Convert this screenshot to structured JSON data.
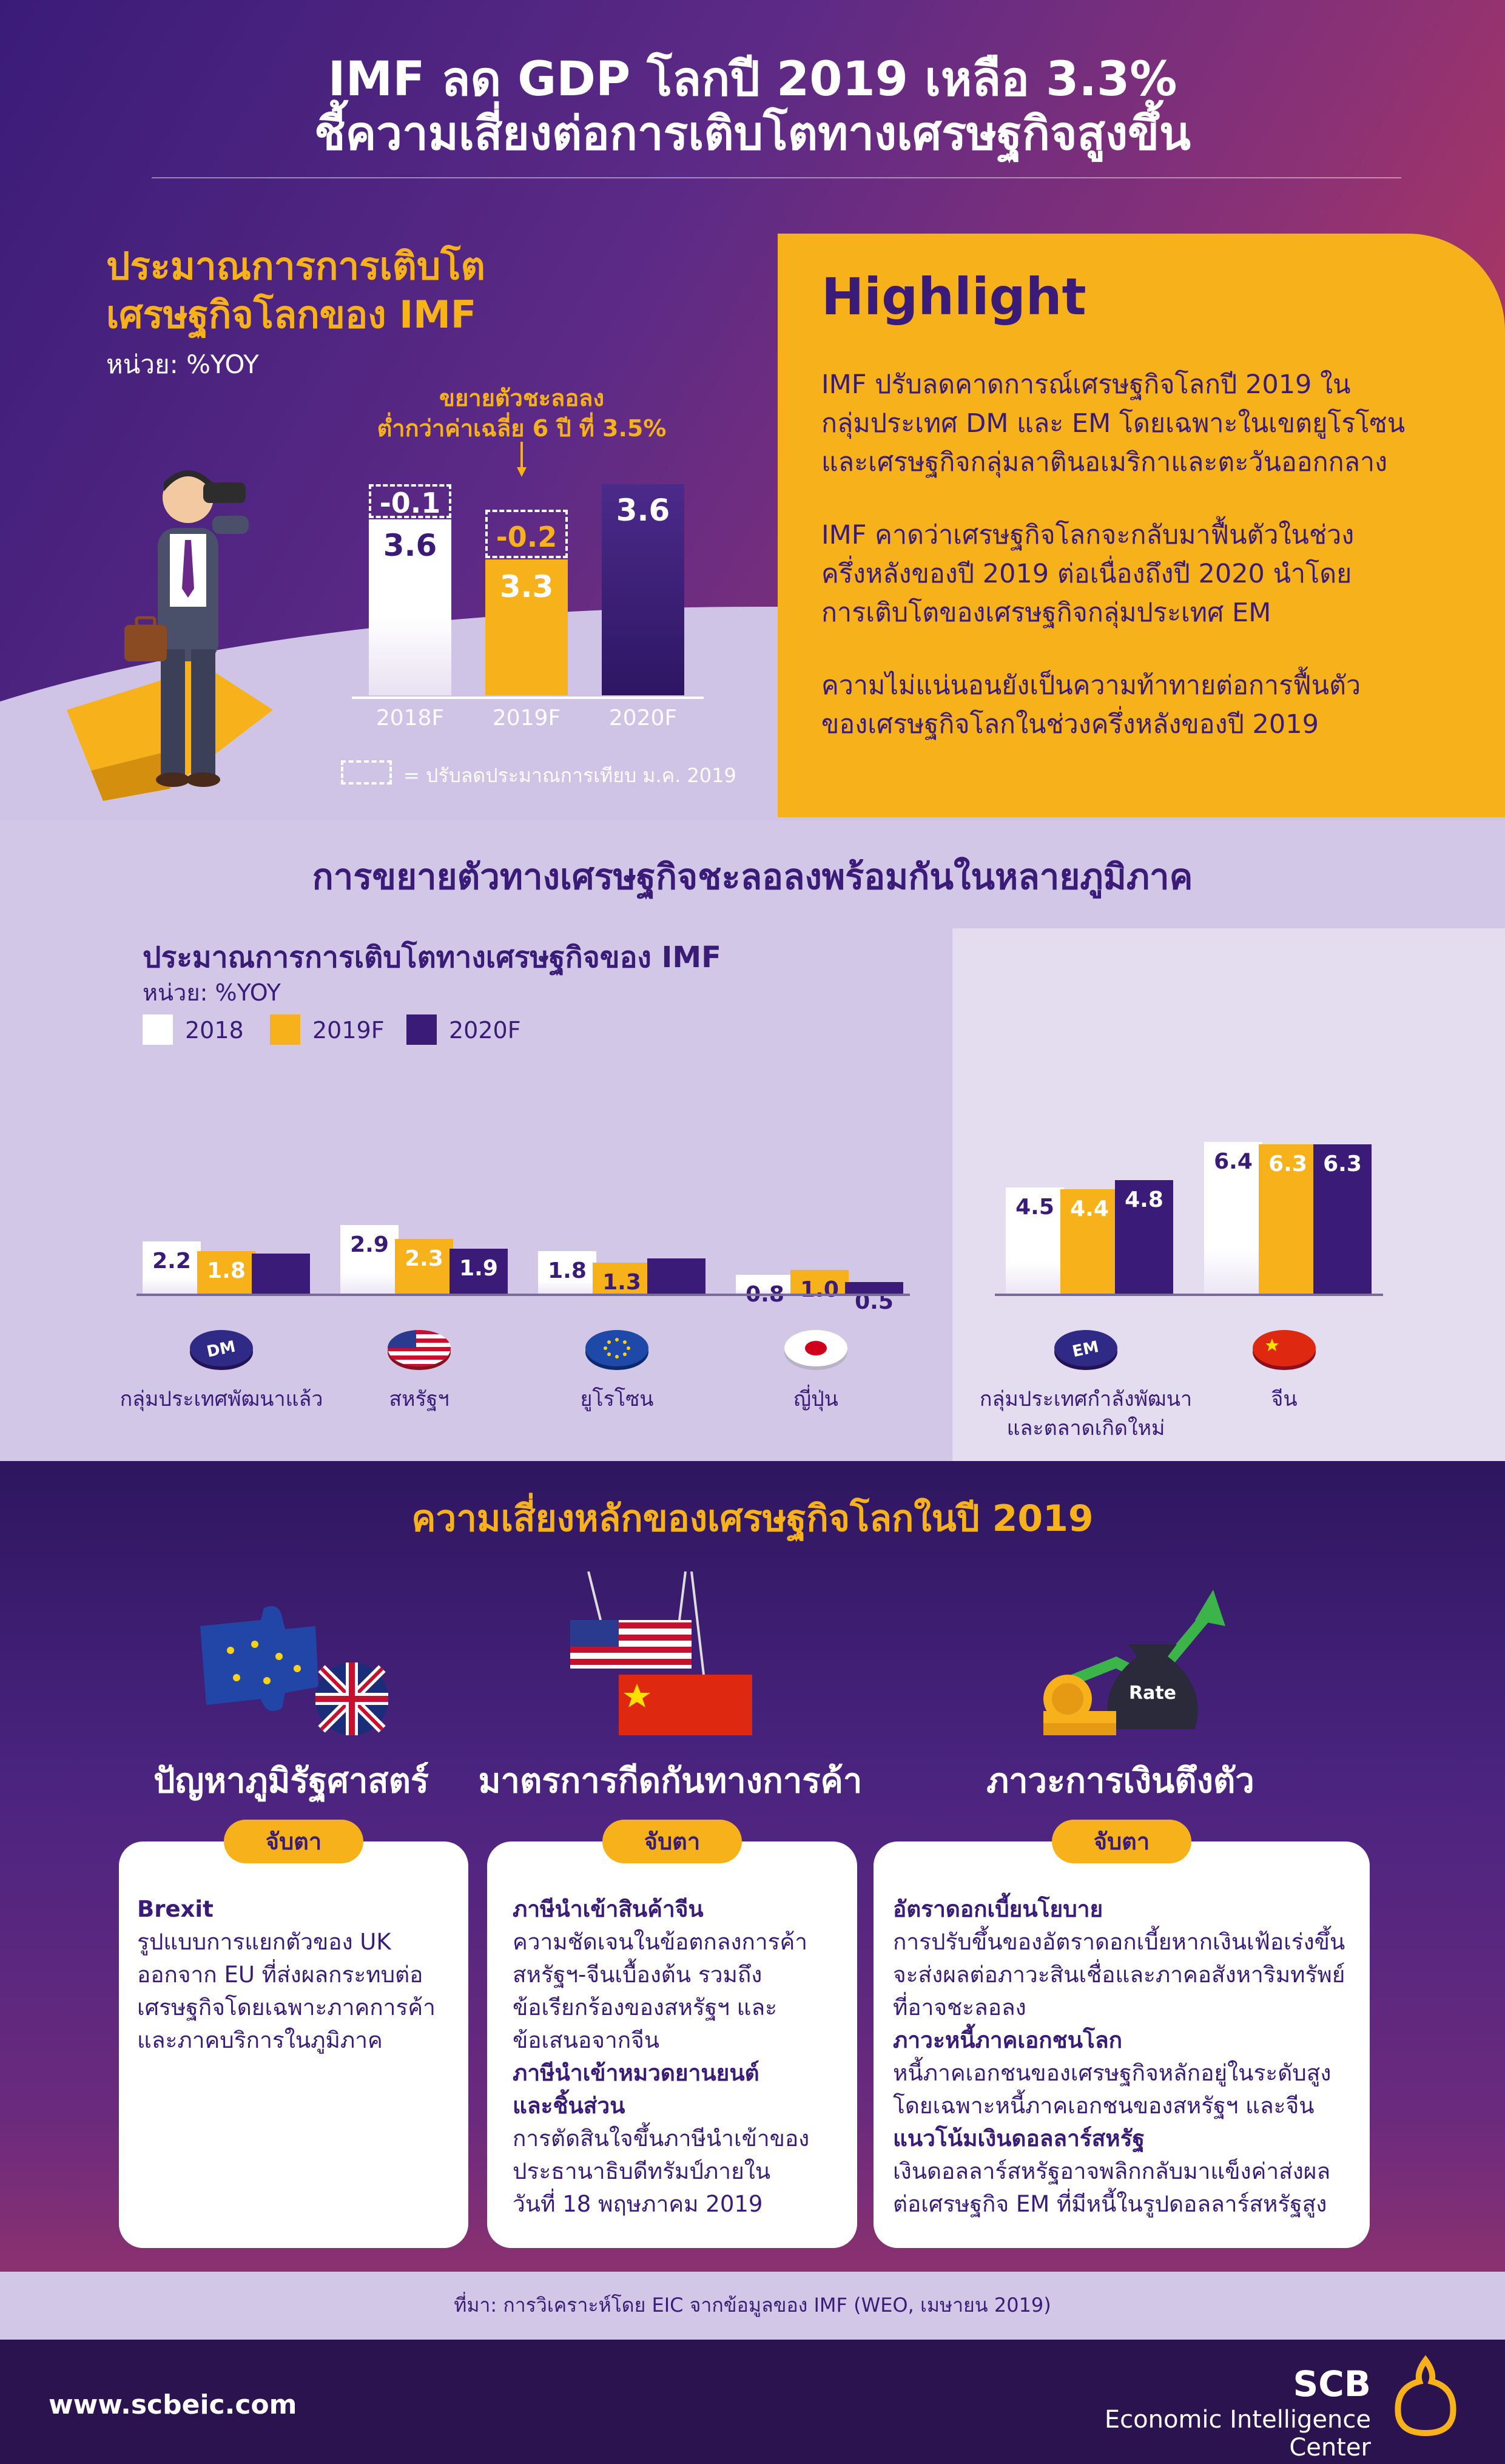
{
  "header": {
    "title_line1": "IMF ลด GDP โลกปี 2019 เหลือ 3.3%",
    "title_line2": "ชี้ความเสี่ยงต่อการเติบโตทางเศรษฐกิจสูงขึ้น"
  },
  "growth": {
    "title_line1": "ประมาณการการเติบโต",
    "title_line2": "เศรษฐกิจโลกของ IMF",
    "unit": "หน่วย: %YOY",
    "note_line1": "ขยายตัวชะลอลง",
    "note_line2": "ต่ำกว่าค่าเฉลี่ย 6 ปี ที่ 3.5%",
    "bars": [
      {
        "year": "2018F",
        "value": "3.6",
        "revision": "-0.1"
      },
      {
        "year": "2019F",
        "value": "3.3",
        "revision": "-0.2"
      },
      {
        "year": "2020F",
        "value": "3.6",
        "revision": ""
      }
    ],
    "legend": "= ปรับลดประมาณการเทียบ ม.ค. 2019"
  },
  "highlight": {
    "title": "Highlight",
    "p1_l1": "IMF ปรับลดคาดการณ์เศรษฐกิจโลกปี 2019 ใน",
    "p1_l2": "กลุ่มประเทศ DM และ EM โดยเฉพาะในเขตยูโรโซน",
    "p1_l3": "และเศรษฐกิจกลุ่มลาตินอเมริกาและตะวันออกกลาง",
    "p2_l1": "IMF คาดว่าเศรษฐกิจโลกจะกลับมาฟื้นตัวในช่วง",
    "p2_l2": "ครึ่งหลังของปี 2019 ต่อเนื่องถึงปี 2020 นำโดย",
    "p2_l3": "การเติบโตของเศรษฐกิจกลุ่มประเทศ EM",
    "p3_l1": "ความไม่แน่นอนยังเป็นความท้าทายต่อการฟื้นตัว",
    "p3_l2": "ของเศรษฐกิจโลกในช่วงครึ่งหลังของปี 2019"
  },
  "regional": {
    "title": "การขยายตัวทางเศรษฐกิจชะลอลงพร้อมกันในหลายภูมิภาค",
    "subtitle": "ประมาณการการเติบโตทางเศรษฐกิจของ IMF",
    "unit": "หน่วย: %YOY",
    "legend": [
      "2018",
      "2019F",
      "2020F"
    ],
    "groups": [
      {
        "label": "กลุ่มประเทศพัฒนาแล้ว",
        "icon": "DM",
        "v": [
          "2.2",
          "1.8",
          "1.7"
        ]
      },
      {
        "label": "สหรัฐฯ",
        "icon": "us-flag-icon",
        "v": [
          "2.9",
          "2.3",
          "1.9"
        ]
      },
      {
        "label": "ยูโรโซน",
        "icon": "eu-flag-icon",
        "v": [
          "1.8",
          "1.3",
          "1.5"
        ]
      },
      {
        "label": "ญี่ปุ่น",
        "icon": "japan-flag-icon",
        "v": [
          "0.8",
          "1.0",
          "0.5"
        ]
      },
      {
        "label_l1": "กลุ่มประเทศกำลังพัฒนา",
        "label_l2": "และตลาดเกิดใหม่",
        "icon": "EM",
        "v": [
          "4.5",
          "4.4",
          "4.8"
        ]
      },
      {
        "label": "จีน",
        "icon": "china-flag-icon",
        "v": [
          "6.4",
          "6.3",
          "6.3"
        ]
      }
    ]
  },
  "chart_data": {
    "type": "bar",
    "categories": [
      "กลุ่มประเทศพัฒนาแล้ว",
      "สหรัฐฯ",
      "ยูโรโซน",
      "ญี่ปุ่น",
      "กลุ่มประเทศกำลังพัฒนาและตลาดเกิดใหม่",
      "จีน"
    ],
    "series": [
      {
        "name": "2018",
        "values": [
          2.2,
          2.9,
          1.8,
          0.8,
          4.5,
          6.4
        ]
      },
      {
        "name": "2019F",
        "values": [
          1.8,
          2.3,
          1.3,
          1.0,
          4.4,
          6.3
        ]
      },
      {
        "name": "2020F",
        "values": [
          1.7,
          1.9,
          1.5,
          0.5,
          4.8,
          6.3
        ]
      }
    ],
    "title": "ประมาณการการเติบโตทางเศรษฐกิจของ IMF",
    "ylabel": "หน่วย: %YOY",
    "ylim": [
      0,
      7
    ]
  },
  "risks": {
    "title": "ความเสี่ยงหลักของเศรษฐกิจโลกในปี 2019",
    "watch_label": "จับตา",
    "items": [
      {
        "title": "ปัญหาภูมิรัฐศาสตร์",
        "lines": [
          {
            "t": "Brexit",
            "b": true
          },
          {
            "t": "รูปแบบการแยกตัวของ UK"
          },
          {
            "t": "ออกจาก EU ที่ส่งผลกระทบต่อ"
          },
          {
            "t": "เศรษฐกิจโดยเฉพาะภาคการค้า"
          },
          {
            "t": "และภาคบริการในภูมิภาค"
          }
        ]
      },
      {
        "title": "มาตรการกีดกันทางการค้า",
        "lines": [
          {
            "t": "ภาษีนำเข้าสินค้าจีน",
            "b": true
          },
          {
            "t": "ความชัดเจนในข้อตกลงการค้า"
          },
          {
            "t": "สหรัฐฯ-จีนเบื้องต้น รวมถึง"
          },
          {
            "t": "ข้อเรียกร้องของสหรัฐฯ และ"
          },
          {
            "t": "ข้อเสนอจากจีน"
          },
          {
            "t": "ภาษีนำเข้าหมวดยานยนต์",
            "b": true
          },
          {
            "t": "และชิ้นส่วน",
            "b": true
          },
          {
            "t": "การตัดสินใจขึ้นภาษีนำเข้าของ"
          },
          {
            "t": "ประธานาธิบดีทรัมป์ภายใน"
          },
          {
            "t": "วันที่ 18 พฤษภาคม 2019"
          }
        ]
      },
      {
        "title": "ภาวะการเงินตึงตัว",
        "lines": [
          {
            "t": "อัตราดอกเบี้ยนโยบาย",
            "b": true
          },
          {
            "t": "การปรับขึ้นของอัตราดอกเบี้ยหากเงินเฟ้อเร่งขึ้น"
          },
          {
            "t": "จะส่งผลต่อภาวะสินเชื่อและภาคอสังหาริมทรัพย์"
          },
          {
            "t": "ที่อาจชะลอลง"
          },
          {
            "t": "ภาวะหนี้ภาคเอกชนโลก",
            "b": true
          },
          {
            "t": "หนี้ภาคเอกชนของเศรษฐกิจหลักอยู่ในระดับสูง"
          },
          {
            "t": "โดยเฉพาะหนี้ภาคเอกชนของสหรัฐฯ และจีน"
          },
          {
            "t": "แนวโน้มเงินดอลลาร์สหรัฐ",
            "b": true
          },
          {
            "t": "เงินดอลลาร์สหรัฐอาจพลิกกลับมาแข็งค่าส่งผล"
          },
          {
            "t": "ต่อเศรษฐกิจ EM ที่มีหนี้ในรูปดอลลาร์สหรัฐสูง"
          }
        ]
      }
    ],
    "icon_rate_label": "Rate"
  },
  "source": "ที่มา: การวิเคราะห์โดย EIC จากข้อมูลของ IMF (WEO, เมษายน 2019)",
  "footer": {
    "url": "www.scbeic.com",
    "brand": "SCB",
    "brand_sub": "Economic Intelligence Center"
  },
  "colors": {
    "purple": "#3a1c78",
    "orange": "#f7b21b",
    "white": "#ffffff",
    "lavender": "#d2c7e6"
  }
}
